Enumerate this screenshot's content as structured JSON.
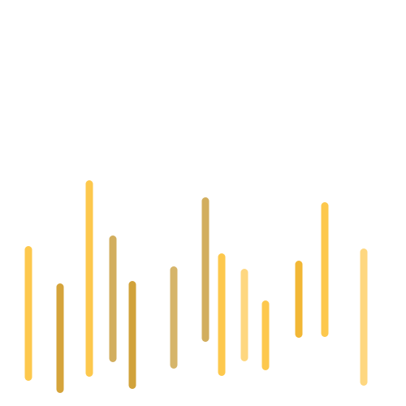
{
  "canvas": {
    "background": "#ffffff"
  },
  "graphic": {
    "kind": "vertical rounded bars",
    "palette": {
      "gold": "#FDC84D",
      "dark_gold": "#D5A43B",
      "tan": "#D2AE5E",
      "deep_gold": "#D1A23A",
      "amber": "#F2B735",
      "pale_gold": "#FED780"
    },
    "bars": [
      {
        "color": "#FDC84D"
      },
      {
        "color": "#D5A43B"
      },
      {
        "color": "#FDC84D"
      },
      {
        "color": "#D2AE5E"
      },
      {
        "color": "#D1A23A"
      },
      {
        "color": "#D6B56A"
      },
      {
        "color": "#D2AE5E"
      },
      {
        "color": "#FDC84D"
      },
      {
        "color": "#FED780"
      },
      {
        "color": "#FDC84D"
      },
      {
        "color": "#F2B735"
      },
      {
        "color": "#FDC84D"
      },
      {
        "color": "#FED780"
      }
    ]
  }
}
